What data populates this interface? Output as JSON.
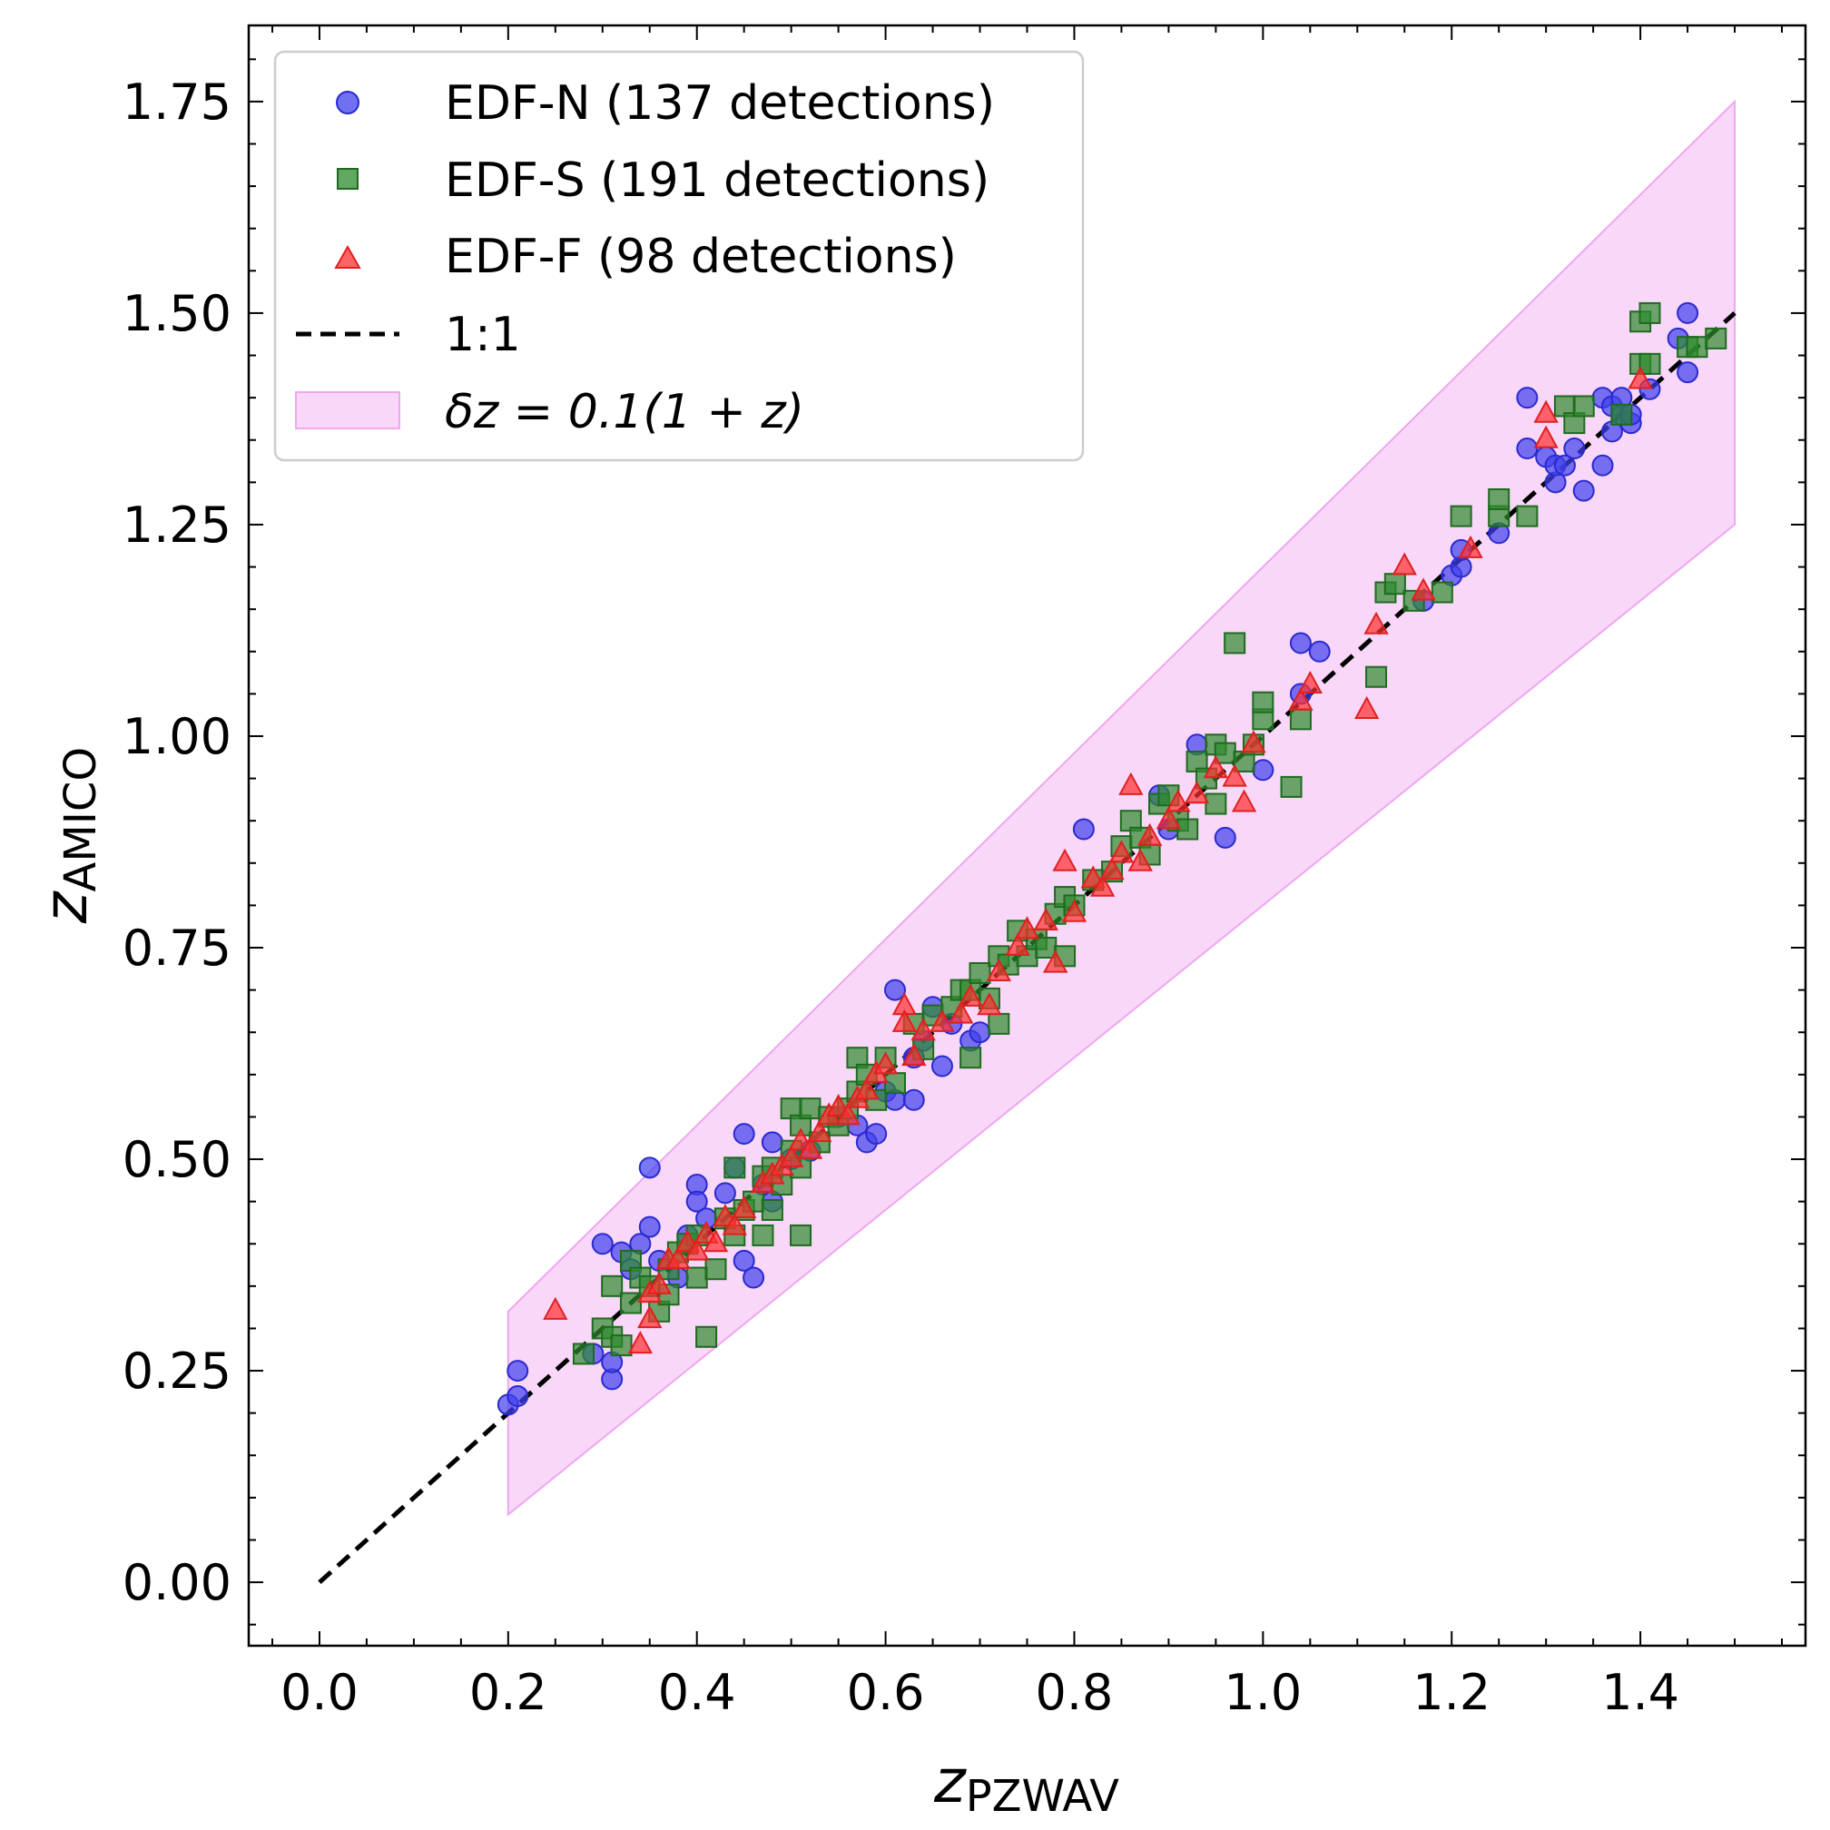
{
  "chart_data": {
    "type": "scatter",
    "xlabel": "z",
    "xlabel_sub": "PZWAV",
    "ylabel": "z",
    "ylabel_sub": "AMICO",
    "xlim": [
      -0.075,
      1.575
    ],
    "ylim": [
      -0.075,
      1.84
    ],
    "xticks": [
      0.0,
      0.2,
      0.4,
      0.6,
      0.8,
      1.0,
      1.2,
      1.4
    ],
    "xtick_labels": [
      "0.0",
      "0.2",
      "0.4",
      "0.6",
      "0.8",
      "1.0",
      "1.2",
      "1.4"
    ],
    "yticks": [
      0.0,
      0.25,
      0.5,
      0.75,
      1.0,
      1.25,
      1.5,
      1.75
    ],
    "ytick_labels": [
      "0.00",
      "0.25",
      "0.50",
      "0.75",
      "1.00",
      "1.25",
      "1.50",
      "1.75"
    ],
    "grid": false,
    "legend_position": "top-left",
    "band": {
      "name": "δz = 0.1(1 + z)",
      "x_range": [
        0.2,
        1.5
      ],
      "color": "#f0a6f0",
      "opacity": 0.45
    },
    "reference_line": {
      "name": "1:1",
      "x": [
        0.0,
        1.5
      ],
      "y": [
        0.0,
        1.5
      ],
      "color": "#000000"
    },
    "series": [
      {
        "name": "EDF-N (137 detections)",
        "marker": "circle",
        "color": "#4040ee",
        "edge": "#2a2ad0",
        "points": [
          [
            0.2,
            0.21
          ],
          [
            0.21,
            0.22
          ],
          [
            0.21,
            0.25
          ],
          [
            0.29,
            0.27
          ],
          [
            0.3,
            0.4
          ],
          [
            0.31,
            0.24
          ],
          [
            0.31,
            0.26
          ],
          [
            0.32,
            0.39
          ],
          [
            0.33,
            0.37
          ],
          [
            0.34,
            0.4
          ],
          [
            0.35,
            0.42
          ],
          [
            0.35,
            0.49
          ],
          [
            0.36,
            0.38
          ],
          [
            0.38,
            0.36
          ],
          [
            0.39,
            0.41
          ],
          [
            0.4,
            0.47
          ],
          [
            0.4,
            0.45
          ],
          [
            0.41,
            0.43
          ],
          [
            0.43,
            0.46
          ],
          [
            0.44,
            0.49
          ],
          [
            0.45,
            0.53
          ],
          [
            0.45,
            0.38
          ],
          [
            0.46,
            0.36
          ],
          [
            0.47,
            0.47
          ],
          [
            0.48,
            0.52
          ],
          [
            0.48,
            0.45
          ],
          [
            0.5,
            0.5
          ],
          [
            0.52,
            0.51
          ],
          [
            0.55,
            0.55
          ],
          [
            0.57,
            0.54
          ],
          [
            0.58,
            0.52
          ],
          [
            0.59,
            0.53
          ],
          [
            0.6,
            0.58
          ],
          [
            0.61,
            0.57
          ],
          [
            0.61,
            0.7
          ],
          [
            0.63,
            0.57
          ],
          [
            0.63,
            0.62
          ],
          [
            0.64,
            0.64
          ],
          [
            0.65,
            0.68
          ],
          [
            0.66,
            0.61
          ],
          [
            0.67,
            0.66
          ],
          [
            0.69,
            0.64
          ],
          [
            0.7,
            0.65
          ],
          [
            0.81,
            0.89
          ],
          [
            0.89,
            0.93
          ],
          [
            0.9,
            0.89
          ],
          [
            0.93,
            0.99
          ],
          [
            0.96,
            0.88
          ],
          [
            1.0,
            0.96
          ],
          [
            1.04,
            1.11
          ],
          [
            1.04,
            1.05
          ],
          [
            1.06,
            1.1
          ],
          [
            1.17,
            1.16
          ],
          [
            1.2,
            1.19
          ],
          [
            1.21,
            1.2
          ],
          [
            1.21,
            1.22
          ],
          [
            1.25,
            1.24
          ],
          [
            1.28,
            1.4
          ],
          [
            1.28,
            1.34
          ],
          [
            1.3,
            1.33
          ],
          [
            1.31,
            1.3
          ],
          [
            1.31,
            1.32
          ],
          [
            1.32,
            1.32
          ],
          [
            1.33,
            1.34
          ],
          [
            1.34,
            1.29
          ],
          [
            1.36,
            1.32
          ],
          [
            1.36,
            1.4
          ],
          [
            1.37,
            1.39
          ],
          [
            1.37,
            1.36
          ],
          [
            1.38,
            1.38
          ],
          [
            1.38,
            1.4
          ],
          [
            1.39,
            1.37
          ],
          [
            1.39,
            1.38
          ],
          [
            1.41,
            1.41
          ],
          [
            1.44,
            1.47
          ],
          [
            1.45,
            1.43
          ],
          [
            1.45,
            1.5
          ]
        ]
      },
      {
        "name": "EDF-S (191 detections)",
        "marker": "square",
        "color": "#2e8b2e",
        "edge": "#1f6a1f",
        "points": [
          [
            0.28,
            0.27
          ],
          [
            0.3,
            0.3
          ],
          [
            0.31,
            0.29
          ],
          [
            0.31,
            0.35
          ],
          [
            0.32,
            0.28
          ],
          [
            0.33,
            0.33
          ],
          [
            0.33,
            0.38
          ],
          [
            0.34,
            0.36
          ],
          [
            0.35,
            0.35
          ],
          [
            0.36,
            0.32
          ],
          [
            0.37,
            0.34
          ],
          [
            0.37,
            0.37
          ],
          [
            0.38,
            0.39
          ],
          [
            0.39,
            0.4
          ],
          [
            0.4,
            0.41
          ],
          [
            0.4,
            0.36
          ],
          [
            0.41,
            0.29
          ],
          [
            0.42,
            0.37
          ],
          [
            0.43,
            0.43
          ],
          [
            0.44,
            0.49
          ],
          [
            0.44,
            0.41
          ],
          [
            0.45,
            0.44
          ],
          [
            0.46,
            0.45
          ],
          [
            0.47,
            0.41
          ],
          [
            0.47,
            0.48
          ],
          [
            0.48,
            0.44
          ],
          [
            0.48,
            0.49
          ],
          [
            0.49,
            0.47
          ],
          [
            0.5,
            0.51
          ],
          [
            0.5,
            0.56
          ],
          [
            0.51,
            0.41
          ],
          [
            0.51,
            0.49
          ],
          [
            0.51,
            0.54
          ],
          [
            0.52,
            0.56
          ],
          [
            0.53,
            0.52
          ],
          [
            0.54,
            0.55
          ],
          [
            0.55,
            0.54
          ],
          [
            0.56,
            0.56
          ],
          [
            0.57,
            0.58
          ],
          [
            0.57,
            0.62
          ],
          [
            0.58,
            0.6
          ],
          [
            0.59,
            0.57
          ],
          [
            0.6,
            0.62
          ],
          [
            0.61,
            0.59
          ],
          [
            0.63,
            0.66
          ],
          [
            0.64,
            0.63
          ],
          [
            0.65,
            0.67
          ],
          [
            0.67,
            0.68
          ],
          [
            0.68,
            0.7
          ],
          [
            0.69,
            0.62
          ],
          [
            0.69,
            0.7
          ],
          [
            0.7,
            0.72
          ],
          [
            0.71,
            0.69
          ],
          [
            0.72,
            0.66
          ],
          [
            0.72,
            0.74
          ],
          [
            0.73,
            0.73
          ],
          [
            0.74,
            0.77
          ],
          [
            0.75,
            0.74
          ],
          [
            0.76,
            0.76
          ],
          [
            0.77,
            0.75
          ],
          [
            0.78,
            0.79
          ],
          [
            0.79,
            0.74
          ],
          [
            0.79,
            0.81
          ],
          [
            0.8,
            0.8
          ],
          [
            0.82,
            0.83
          ],
          [
            0.84,
            0.84
          ],
          [
            0.85,
            0.87
          ],
          [
            0.86,
            0.9
          ],
          [
            0.87,
            0.88
          ],
          [
            0.88,
            0.86
          ],
          [
            0.89,
            0.92
          ],
          [
            0.9,
            0.93
          ],
          [
            0.91,
            0.9
          ],
          [
            0.92,
            0.89
          ],
          [
            0.93,
            0.97
          ],
          [
            0.94,
            0.95
          ],
          [
            0.95,
            0.92
          ],
          [
            0.95,
            0.99
          ],
          [
            0.96,
            0.98
          ],
          [
            0.97,
            1.11
          ],
          [
            0.98,
            0.97
          ],
          [
            0.99,
            0.99
          ],
          [
            1.0,
            1.02
          ],
          [
            1.0,
            1.04
          ],
          [
            1.03,
            0.94
          ],
          [
            1.04,
            1.02
          ],
          [
            1.12,
            1.07
          ],
          [
            1.13,
            1.17
          ],
          [
            1.14,
            1.18
          ],
          [
            1.16,
            1.16
          ],
          [
            1.19,
            1.17
          ],
          [
            1.21,
            1.26
          ],
          [
            1.25,
            1.26
          ],
          [
            1.25,
            1.28
          ],
          [
            1.28,
            1.26
          ],
          [
            1.32,
            1.39
          ],
          [
            1.33,
            1.37
          ],
          [
            1.34,
            1.39
          ],
          [
            1.38,
            1.38
          ],
          [
            1.4,
            1.44
          ],
          [
            1.4,
            1.49
          ],
          [
            1.41,
            1.5
          ],
          [
            1.41,
            1.44
          ],
          [
            1.45,
            1.46
          ],
          [
            1.46,
            1.46
          ],
          [
            1.48,
            1.47
          ]
        ]
      },
      {
        "name": "EDF-F (98 detections)",
        "marker": "triangle",
        "color": "#ff3030",
        "edge": "#e02020",
        "points": [
          [
            0.25,
            0.32
          ],
          [
            0.34,
            0.28
          ],
          [
            0.35,
            0.34
          ],
          [
            0.35,
            0.31
          ],
          [
            0.36,
            0.35
          ],
          [
            0.37,
            0.38
          ],
          [
            0.38,
            0.38
          ],
          [
            0.39,
            0.4
          ],
          [
            0.4,
            0.39
          ],
          [
            0.41,
            0.41
          ],
          [
            0.42,
            0.4
          ],
          [
            0.43,
            0.43
          ],
          [
            0.44,
            0.42
          ],
          [
            0.45,
            0.44
          ],
          [
            0.47,
            0.47
          ],
          [
            0.48,
            0.48
          ],
          [
            0.49,
            0.49
          ],
          [
            0.5,
            0.5
          ],
          [
            0.51,
            0.52
          ],
          [
            0.52,
            0.51
          ],
          [
            0.53,
            0.53
          ],
          [
            0.54,
            0.55
          ],
          [
            0.55,
            0.56
          ],
          [
            0.56,
            0.55
          ],
          [
            0.57,
            0.57
          ],
          [
            0.58,
            0.58
          ],
          [
            0.59,
            0.6
          ],
          [
            0.6,
            0.61
          ],
          [
            0.62,
            0.68
          ],
          [
            0.62,
            0.66
          ],
          [
            0.63,
            0.62
          ],
          [
            0.64,
            0.65
          ],
          [
            0.66,
            0.66
          ],
          [
            0.68,
            0.67
          ],
          [
            0.69,
            0.69
          ],
          [
            0.71,
            0.68
          ],
          [
            0.72,
            0.72
          ],
          [
            0.74,
            0.75
          ],
          [
            0.75,
            0.77
          ],
          [
            0.77,
            0.78
          ],
          [
            0.78,
            0.73
          ],
          [
            0.79,
            0.85
          ],
          [
            0.8,
            0.79
          ],
          [
            0.82,
            0.83
          ],
          [
            0.83,
            0.82
          ],
          [
            0.84,
            0.84
          ],
          [
            0.85,
            0.86
          ],
          [
            0.86,
            0.94
          ],
          [
            0.87,
            0.85
          ],
          [
            0.88,
            0.88
          ],
          [
            0.9,
            0.9
          ],
          [
            0.91,
            0.92
          ],
          [
            0.93,
            0.93
          ],
          [
            0.95,
            0.96
          ],
          [
            0.97,
            0.95
          ],
          [
            0.98,
            0.92
          ],
          [
            0.99,
            0.99
          ],
          [
            1.04,
            1.04
          ],
          [
            1.05,
            1.06
          ],
          [
            1.11,
            1.03
          ],
          [
            1.12,
            1.13
          ],
          [
            1.15,
            1.2
          ],
          [
            1.17,
            1.17
          ],
          [
            1.22,
            1.22
          ],
          [
            1.3,
            1.38
          ],
          [
            1.3,
            1.35
          ],
          [
            1.4,
            1.42
          ]
        ]
      }
    ]
  }
}
